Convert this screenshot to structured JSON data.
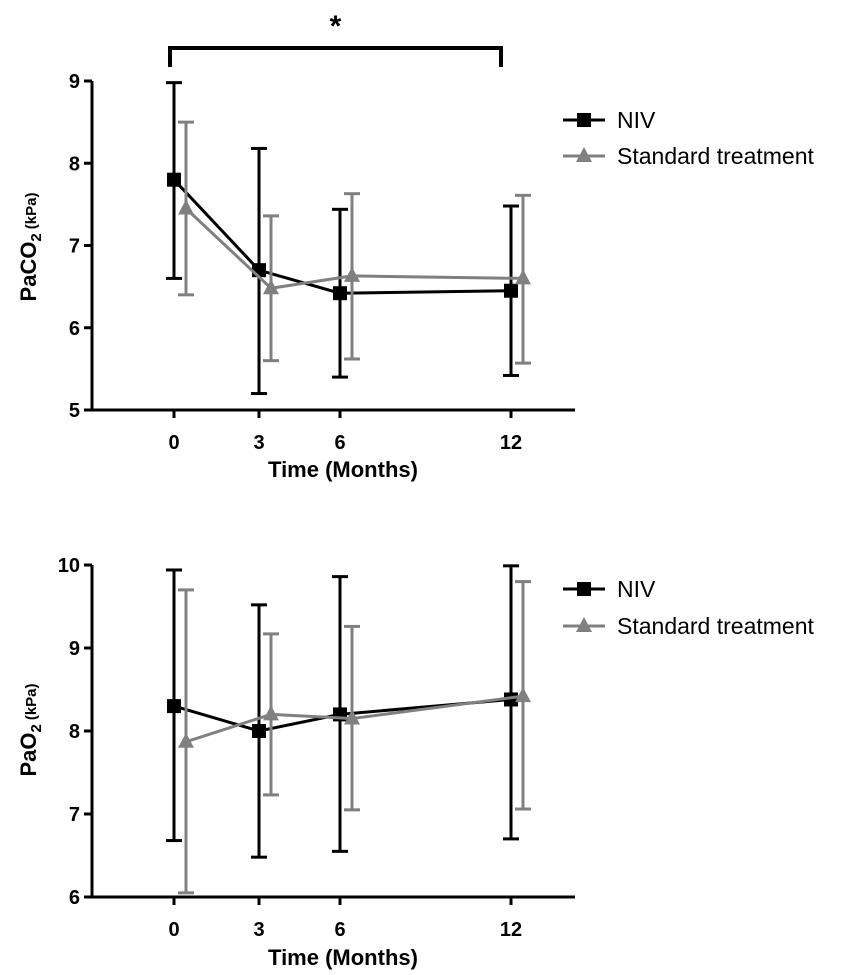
{
  "chart_data": [
    {
      "type": "line",
      "ylabel": {
        "main": "PaCO",
        "sub": "2",
        "unit": "(kPa)"
      },
      "xlabel": "Time (Months)",
      "x": [
        0,
        3,
        6,
        12
      ],
      "x_ticks": [
        "0",
        "3",
        "6",
        "12"
      ],
      "ylim": [
        5,
        9
      ],
      "y_ticks": [
        "5",
        "6",
        "7",
        "8",
        "9"
      ],
      "legend_position": "top-right",
      "significance": {
        "label": "*",
        "from_x": 0,
        "to_x": 12
      },
      "series": [
        {
          "name": "NIV",
          "marker": "square",
          "color": "#000000",
          "values": [
            7.8,
            6.7,
            6.42,
            6.45
          ],
          "error_low": [
            6.6,
            5.2,
            5.4,
            5.42
          ],
          "error_high": [
            8.98,
            8.18,
            7.44,
            7.48
          ]
        },
        {
          "name": "Standard treatment",
          "marker": "triangle",
          "color": "#808080",
          "values": [
            7.45,
            6.48,
            6.63,
            6.6
          ],
          "error_low": [
            6.4,
            5.6,
            5.62,
            5.57
          ],
          "error_high": [
            8.5,
            7.36,
            7.63,
            7.61
          ]
        }
      ]
    },
    {
      "type": "line",
      "ylabel": {
        "main": "PaO",
        "sub": "2",
        "unit": "(kPa)"
      },
      "xlabel": "Time (Months)",
      "x": [
        0,
        3,
        6,
        12
      ],
      "x_ticks": [
        "0",
        "3",
        "6",
        "12"
      ],
      "ylim": [
        6,
        10
      ],
      "y_ticks": [
        "6",
        "7",
        "8",
        "9",
        "10"
      ],
      "legend_position": "top-right",
      "series": [
        {
          "name": "NIV",
          "marker": "square",
          "color": "#000000",
          "values": [
            8.3,
            8.0,
            8.2,
            8.38
          ],
          "error_low": [
            6.68,
            6.48,
            6.55,
            6.7
          ],
          "error_high": [
            9.94,
            9.52,
            9.86,
            9.99
          ]
        },
        {
          "name": "Standard treatment",
          "marker": "triangle",
          "color": "#808080",
          "values": [
            7.87,
            8.2,
            8.15,
            8.42
          ],
          "error_low": [
            6.05,
            7.23,
            7.05,
            7.06
          ],
          "error_high": [
            9.7,
            9.17,
            9.26,
            9.8
          ]
        }
      ]
    }
  ]
}
